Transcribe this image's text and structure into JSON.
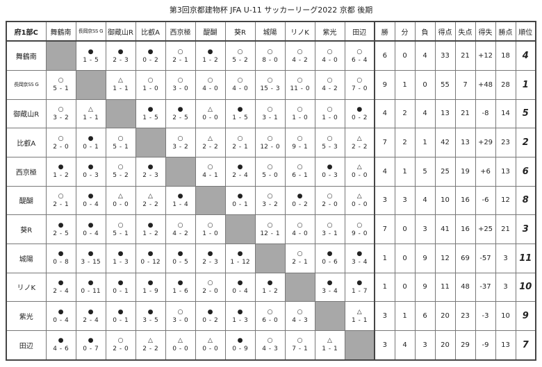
{
  "title": "第3回京都建物杯 JFA U-11 サッカーリーグ2022 京都 後期",
  "table": {
    "corner": "府1部C",
    "teams": [
      "舞鶴南",
      "長岡京SS G",
      "御蔵山R",
      "比叡A",
      "西京極",
      "醍醐",
      "葵R",
      "城陽",
      "リノK",
      "紫光",
      "田辺"
    ],
    "stat_headers": [
      "勝",
      "分",
      "負",
      "得点",
      "失点",
      "得失",
      "勝点",
      "順位"
    ],
    "rows": [
      {
        "team": "舞鶴南",
        "results": [
          null,
          {
            "mark": "●",
            "score": "1 - 5"
          },
          {
            "mark": "●",
            "score": "2 - 3"
          },
          {
            "mark": "●",
            "score": "0 - 2"
          },
          {
            "mark": "○",
            "score": "2 - 1"
          },
          {
            "mark": "●",
            "score": "1 - 2"
          },
          {
            "mark": "○",
            "score": "5 - 2"
          },
          {
            "mark": "○",
            "score": "8 - 0"
          },
          {
            "mark": "○",
            "score": "4 - 2"
          },
          {
            "mark": "○",
            "score": "4 - 0"
          },
          {
            "mark": "○",
            "score": "6 - 4"
          }
        ],
        "stats": [
          6,
          0,
          4,
          33,
          21,
          "+12",
          18,
          4
        ]
      },
      {
        "team": "長岡京SS G",
        "results": [
          {
            "mark": "○",
            "score": "5 - 1"
          },
          null,
          {
            "mark": "△",
            "score": "1 - 1"
          },
          {
            "mark": "○",
            "score": "1 - 0"
          },
          {
            "mark": "○",
            "score": "3 - 0"
          },
          {
            "mark": "○",
            "score": "4 - 0"
          },
          {
            "mark": "○",
            "score": "4 - 0"
          },
          {
            "mark": "○",
            "score": "15 - 3"
          },
          {
            "mark": "○",
            "score": "11 - 0"
          },
          {
            "mark": "○",
            "score": "4 - 2"
          },
          {
            "mark": "○",
            "score": "7 - 0"
          }
        ],
        "stats": [
          9,
          1,
          0,
          55,
          7,
          "+48",
          28,
          1
        ]
      },
      {
        "team": "御蔵山R",
        "results": [
          {
            "mark": "○",
            "score": "3 - 2"
          },
          {
            "mark": "△",
            "score": "1 - 1"
          },
          null,
          {
            "mark": "●",
            "score": "1 - 5"
          },
          {
            "mark": "●",
            "score": "2 - 5"
          },
          {
            "mark": "△",
            "score": "0 - 0"
          },
          {
            "mark": "●",
            "score": "1 - 5"
          },
          {
            "mark": "○",
            "score": "3 - 1"
          },
          {
            "mark": "○",
            "score": "1 - 0"
          },
          {
            "mark": "○",
            "score": "1 - 0"
          },
          {
            "mark": "●",
            "score": "0 - 2"
          }
        ],
        "stats": [
          4,
          2,
          4,
          13,
          21,
          -8,
          14,
          5
        ]
      },
      {
        "team": "比叡A",
        "results": [
          {
            "mark": "○",
            "score": "2 - 0"
          },
          {
            "mark": "●",
            "score": "0 - 1"
          },
          {
            "mark": "○",
            "score": "5 - 1"
          },
          null,
          {
            "mark": "○",
            "score": "3 - 2"
          },
          {
            "mark": "△",
            "score": "2 - 2"
          },
          {
            "mark": "○",
            "score": "2 - 1"
          },
          {
            "mark": "○",
            "score": "12 - 0"
          },
          {
            "mark": "○",
            "score": "9 - 1"
          },
          {
            "mark": "○",
            "score": "5 - 3"
          },
          {
            "mark": "△",
            "score": "2 - 2"
          }
        ],
        "stats": [
          7,
          2,
          1,
          42,
          13,
          "+29",
          23,
          2
        ]
      },
      {
        "team": "西京極",
        "results": [
          {
            "mark": "●",
            "score": "1 - 2"
          },
          {
            "mark": "●",
            "score": "0 - 3"
          },
          {
            "mark": "○",
            "score": "5 - 2"
          },
          {
            "mark": "●",
            "score": "2 - 3"
          },
          null,
          {
            "mark": "○",
            "score": "4 - 1"
          },
          {
            "mark": "●",
            "score": "2 - 4"
          },
          {
            "mark": "○",
            "score": "5 - 0"
          },
          {
            "mark": "○",
            "score": "6 - 1"
          },
          {
            "mark": "●",
            "score": "0 - 3"
          },
          {
            "mark": "△",
            "score": "0 - 0"
          }
        ],
        "stats": [
          4,
          1,
          5,
          25,
          19,
          "+6",
          13,
          6
        ]
      },
      {
        "team": "醍醐",
        "results": [
          {
            "mark": "○",
            "score": "2 - 1"
          },
          {
            "mark": "●",
            "score": "0 - 4"
          },
          {
            "mark": "△",
            "score": "0 - 0"
          },
          {
            "mark": "△",
            "score": "2 - 2"
          },
          {
            "mark": "●",
            "score": "1 - 4"
          },
          null,
          {
            "mark": "●",
            "score": "0 - 1"
          },
          {
            "mark": "○",
            "score": "3 - 2"
          },
          {
            "mark": "●",
            "score": "0 - 2"
          },
          {
            "mark": "○",
            "score": "2 - 0"
          },
          {
            "mark": "△",
            "score": "0 - 0"
          }
        ],
        "stats": [
          3,
          3,
          4,
          10,
          16,
          -6,
          12,
          8
        ]
      },
      {
        "team": "葵R",
        "results": [
          {
            "mark": "●",
            "score": "2 - 5"
          },
          {
            "mark": "●",
            "score": "0 - 4"
          },
          {
            "mark": "○",
            "score": "5 - 1"
          },
          {
            "mark": "●",
            "score": "1 - 2"
          },
          {
            "mark": "○",
            "score": "4 - 2"
          },
          {
            "mark": "○",
            "score": "1 - 0"
          },
          null,
          {
            "mark": "○",
            "score": "12 - 1"
          },
          {
            "mark": "○",
            "score": "4 - 0"
          },
          {
            "mark": "○",
            "score": "3 - 1"
          },
          {
            "mark": "○",
            "score": "9 - 0"
          }
        ],
        "stats": [
          7,
          0,
          3,
          41,
          16,
          "+25",
          21,
          3
        ]
      },
      {
        "team": "城陽",
        "results": [
          {
            "mark": "●",
            "score": "0 - 8"
          },
          {
            "mark": "●",
            "score": "3 - 15"
          },
          {
            "mark": "●",
            "score": "1 - 3"
          },
          {
            "mark": "●",
            "score": "0 - 12"
          },
          {
            "mark": "●",
            "score": "0 - 5"
          },
          {
            "mark": "●",
            "score": "2 - 3"
          },
          {
            "mark": "●",
            "score": "1 - 12"
          },
          null,
          {
            "mark": "○",
            "score": "2 - 1"
          },
          {
            "mark": "●",
            "score": "0 - 6"
          },
          {
            "mark": "●",
            "score": "3 - 4"
          }
        ],
        "stats": [
          1,
          0,
          9,
          12,
          69,
          -57,
          3,
          11
        ]
      },
      {
        "team": "リノK",
        "results": [
          {
            "mark": "●",
            "score": "2 - 4"
          },
          {
            "mark": "●",
            "score": "0 - 11"
          },
          {
            "mark": "●",
            "score": "0 - 1"
          },
          {
            "mark": "●",
            "score": "1 - 9"
          },
          {
            "mark": "●",
            "score": "1 - 6"
          },
          {
            "mark": "○",
            "score": "2 - 0"
          },
          {
            "mark": "●",
            "score": "0 - 4"
          },
          {
            "mark": "●",
            "score": "1 - 2"
          },
          null,
          {
            "mark": "●",
            "score": "3 - 4"
          },
          {
            "mark": "●",
            "score": "1 - 7"
          }
        ],
        "stats": [
          1,
          0,
          9,
          11,
          48,
          -37,
          3,
          10
        ]
      },
      {
        "team": "紫光",
        "results": [
          {
            "mark": "●",
            "score": "0 - 4"
          },
          {
            "mark": "●",
            "score": "2 - 4"
          },
          {
            "mark": "●",
            "score": "0 - 1"
          },
          {
            "mark": "●",
            "score": "3 - 5"
          },
          {
            "mark": "○",
            "score": "3 - 0"
          },
          {
            "mark": "●",
            "score": "0 - 2"
          },
          {
            "mark": "●",
            "score": "1 - 3"
          },
          {
            "mark": "○",
            "score": "6 - 0"
          },
          {
            "mark": "○",
            "score": "4 - 3"
          },
          null,
          {
            "mark": "△",
            "score": "1 - 1"
          }
        ],
        "stats": [
          3,
          1,
          6,
          20,
          23,
          -3,
          10,
          9
        ]
      },
      {
        "team": "田辺",
        "results": [
          {
            "mark": "●",
            "score": "4 - 6"
          },
          {
            "mark": "●",
            "score": "0 - 7"
          },
          {
            "mark": "○",
            "score": "2 - 0"
          },
          {
            "mark": "△",
            "score": "2 - 2"
          },
          {
            "mark": "△",
            "score": "0 - 0"
          },
          {
            "mark": "△",
            "score": "0 - 0"
          },
          {
            "mark": "●",
            "score": "0 - 9"
          },
          {
            "mark": "○",
            "score": "4 - 3"
          },
          {
            "mark": "○",
            "score": "7 - 1"
          },
          {
            "mark": "△",
            "score": "1 - 1"
          },
          null
        ],
        "stats": [
          3,
          4,
          3,
          20,
          29,
          -9,
          13,
          7
        ]
      }
    ]
  }
}
